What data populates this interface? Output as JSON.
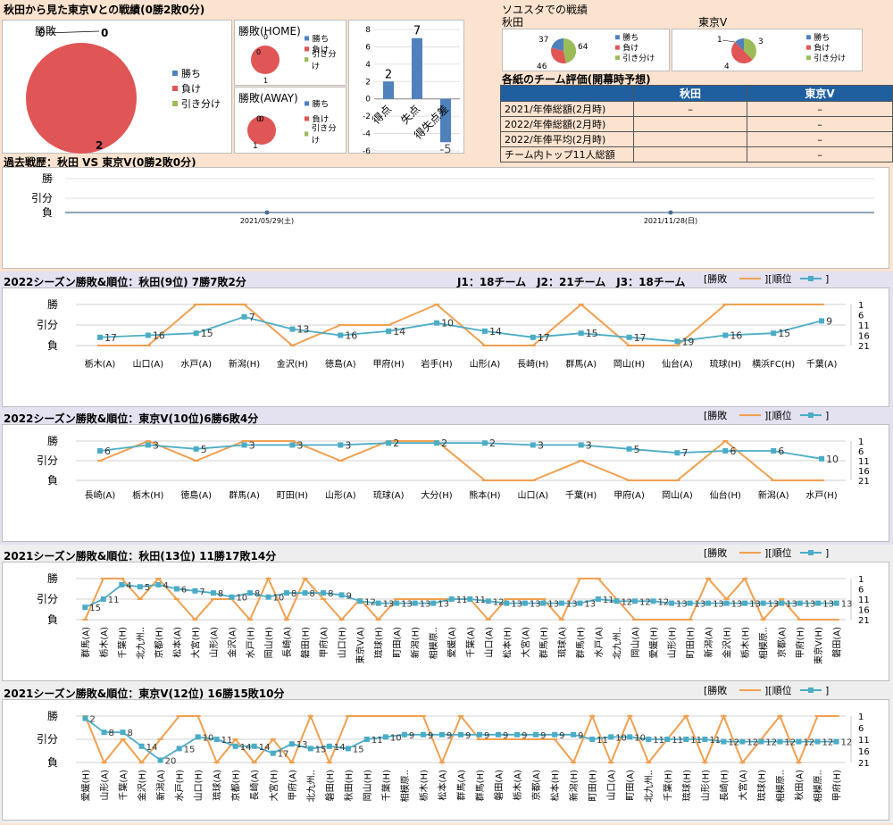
{
  "top": {
    "title": "秋田から見た東京Vとの戦績(0勝2敗0分)",
    "pie_label": "勝敗",
    "pie_home_label": "勝敗(HOME)",
    "pie_away_label": "勝敗(AWAY)",
    "legend": [
      "勝ち",
      "負け",
      "引き分け"
    ],
    "colors": {
      "win": "#4f81bd",
      "loss": "#e05555",
      "draw": "#9bbb59"
    }
  },
  "sosusta": {
    "title": "ソユスタでの戦績",
    "akita_label": "秋田",
    "tokyo_label": "東京V"
  },
  "eval": {
    "title": "各紙のチーム評価(開幕時予想)",
    "col_akita": "秋田",
    "col_tokyo": "東京V",
    "rows": [
      {
        "label": "2021/年俸総額(2月時)",
        "akita": "–",
        "tokyo": "–"
      },
      {
        "label": "2022/年俸総額(2月時)",
        "akita": "",
        "tokyo": "–"
      },
      {
        "label": "2022/年俸平均(2月時)",
        "akita": "",
        "tokyo": "–"
      },
      {
        "label": "チーム内トップ11人総額",
        "akita": "",
        "tokyo": "–"
      }
    ]
  },
  "history": {
    "title": "過去戦歴：秋田 VS 東京V(0勝2敗0分)",
    "ylabels": [
      "勝",
      "引分",
      "負"
    ]
  },
  "season_labels": {
    "s1": "2022シーズン勝敗&順位：秋田(9位) 7勝7敗2分",
    "s1_note": "J1：18チーム　J2：21チーム　J3：18チーム",
    "s2": "2022シーズン勝敗&順位：東京V(10位)6勝6敗4分",
    "s3": "2021シーズン勝敗&順位：秋田(13位) 11勝17敗14分",
    "s4": "2021シーズン勝敗&順位：東京V(12位) 16勝15敗10分",
    "legend_result": "[勝敗",
    "legend_rank": "][順位",
    "legend_end": "]",
    "ylabels": [
      "勝",
      "引分",
      "負"
    ]
  },
  "chart_data": [
    {
      "type": "pie",
      "title": "勝敗",
      "series": [
        {
          "name": "勝ち",
          "value": 0
        },
        {
          "name": "負け",
          "value": 2
        },
        {
          "name": "引き分け",
          "value": 0
        }
      ]
    },
    {
      "type": "pie",
      "title": "勝敗(HOME)",
      "series": [
        {
          "name": "勝ち",
          "value": 0
        },
        {
          "name": "負け",
          "value": 1
        },
        {
          "name": "引き分け",
          "value": 0
        }
      ]
    },
    {
      "type": "pie",
      "title": "勝敗(AWAY)",
      "series": [
        {
          "name": "勝ち",
          "value": 0
        },
        {
          "name": "負け",
          "value": 1
        },
        {
          "name": "引き分け",
          "value": 0
        }
      ]
    },
    {
      "type": "bar",
      "categories": [
        "得点",
        "失点",
        "得失点差"
      ],
      "values": [
        2,
        7,
        -5
      ],
      "ylim": [
        -6,
        8
      ],
      "yticks": [
        -6,
        -4,
        -2,
        0,
        2,
        4,
        6,
        8
      ]
    },
    {
      "type": "pie",
      "title": "秋田",
      "series": [
        {
          "name": "勝ち",
          "value": 37
        },
        {
          "name": "負け",
          "value": 46
        },
        {
          "name": "引き分け",
          "value": 64
        }
      ]
    },
    {
      "type": "pie",
      "title": "東京V",
      "series": [
        {
          "name": "勝ち",
          "value": 1
        },
        {
          "name": "負け",
          "value": 4
        },
        {
          "name": "引き分け",
          "value": 3
        }
      ]
    },
    {
      "type": "line",
      "title": "過去戦歴：秋田 VS 東京V(0勝2敗0分)",
      "x": [
        "2021/05/29(土)",
        "2021/11/28(日)"
      ],
      "result": [
        0,
        0
      ]
    },
    {
      "type": "line",
      "title": "2022シーズン勝敗&順位：秋田(9位) 7勝7敗2分",
      "x": [
        "栃木(A)",
        "山口(A)",
        "水戸(A)",
        "新潟(H)",
        "金沢(H)",
        "徳島(A)",
        "甲府(H)",
        "岩手(H)",
        "山形(A)",
        "長崎(H)",
        "群馬(A)",
        "岡山(H)",
        "仙台(A)",
        "琉球(H)",
        "横浜FC(H)",
        "千葉(A)"
      ],
      "result": [
        0,
        0,
        2,
        2,
        0,
        1,
        1,
        2,
        0,
        0,
        2,
        0,
        0,
        2,
        2,
        2
      ],
      "rank": [
        17,
        16,
        15,
        7,
        13,
        16,
        14,
        10,
        14,
        17,
        15,
        17,
        19,
        16,
        15,
        9
      ]
    },
    {
      "type": "line",
      "title": "2022シーズン勝敗&順位：東京V(10位)6勝6敗4分",
      "x": [
        "長崎(A)",
        "栃木(H)",
        "徳島(A)",
        "群馬(A)",
        "町田(H)",
        "山形(A)",
        "琉球(A)",
        "大分(H)",
        "熊本(H)",
        "山口(A)",
        "千葉(H)",
        "甲府(A)",
        "岡山(A)",
        "仙台(H)",
        "新潟(A)",
        "水戸(H)"
      ],
      "result": [
        1,
        2,
        1,
        2,
        2,
        1,
        2,
        2,
        0,
        0,
        1,
        0,
        0,
        2,
        0,
        0
      ],
      "rank": [
        6,
        3,
        5,
        3,
        3,
        3,
        2,
        2,
        2,
        3,
        3,
        5,
        7,
        6,
        6,
        10
      ]
    },
    {
      "type": "line",
      "title": "2021シーズン勝敗&順位：秋田(13位) 11勝17敗14分",
      "x": [
        "群馬(A)",
        "栃木(A)",
        "千葉(H)",
        "北九州..",
        "京都(H)",
        "松本(A)",
        "大宮(H)",
        "山形(A)",
        "金沢(A)",
        "水戸(H)",
        "岡山(H)",
        "長崎(A)",
        "磐田(H)",
        "甲府(A)",
        "山口(H)",
        "東京V(A)",
        "琉球(H)",
        "町田(A)",
        "新潟(H)",
        "相模原..",
        "愛媛(A)",
        "千葉(A)",
        "山口(A)",
        "松本(H)",
        "大宮(A)",
        "群馬(H)",
        "琉球(A)",
        "群馬(H)",
        "水戸(A)",
        "北九州..",
        "岡山(A)",
        "愛媛(H)",
        "山形(H)",
        "町田(H)",
        "新潟(A)",
        "金沢(H)",
        "栃木(H)",
        "相模原..",
        "京都(A)",
        "甲府(H)",
        "東京V(H)",
        "磐田(A)"
      ],
      "result": [
        0,
        2,
        2,
        1,
        2,
        1,
        0,
        1,
        1,
        0,
        2,
        0,
        2,
        1,
        0,
        1,
        0,
        1,
        1,
        1,
        1,
        1,
        0,
        1,
        1,
        1,
        0,
        2,
        2,
        1,
        0,
        0,
        0,
        0,
        2,
        1,
        2,
        0,
        1,
        0,
        0,
        0
      ],
      "rank": [
        15,
        11,
        4,
        5,
        4,
        6,
        7,
        8,
        10,
        8,
        10,
        8,
        8,
        8,
        9,
        12,
        13,
        13,
        13,
        13,
        11,
        11,
        12,
        13,
        13,
        13,
        13,
        13,
        11,
        12,
        12,
        12,
        13,
        13,
        13,
        13,
        13,
        13,
        13,
        13,
        13,
        13
      ]
    },
    {
      "type": "line",
      "title": "2021シーズン勝敗&順位：東京V(12位) 16勝15敗10分",
      "x": [
        "愛媛(H)",
        "山形(A)",
        "千葉(A)",
        "金沢(H)",
        "新潟(A)",
        "水戸(H)",
        "山口(H)",
        "琉球(A)",
        "京都(H)",
        "長崎(A)",
        "大宮(H)",
        "甲府(A)",
        "北九州..",
        "磐田(H)",
        "秋田(H)",
        "岡山(H)",
        "千葉(H)",
        "相模原..",
        "栃木(H)",
        "松本(A)",
        "群馬(A)",
        "群馬(H)",
        "磐田(A)",
        "栃木(A)",
        "京都(A)",
        "松本(H)",
        "新潟(H)",
        "町田(H)",
        "山口(A)",
        "町田(A)",
        "北九州..",
        "千葉(H)",
        "琉球(H)",
        "山形(H)",
        "長崎(H)",
        "大宮(A)",
        "琉球(H)",
        "相模原..",
        "秋田(A)",
        "相模原..",
        "甲府(H)"
      ],
      "result": [
        2,
        0,
        1,
        0,
        1,
        2,
        2,
        0,
        1,
        0,
        1,
        0,
        2,
        0,
        2,
        2,
        2,
        2,
        2,
        0,
        2,
        1,
        1,
        1,
        1,
        1,
        0,
        2,
        0,
        2,
        0,
        1,
        2,
        0,
        2,
        0,
        1,
        2,
        0,
        2,
        2
      ],
      "rank": [
        2,
        8,
        8,
        14,
        20,
        15,
        10,
        11,
        14,
        14,
        17,
        13,
        15,
        14,
        15,
        11,
        10,
        9,
        9,
        9,
        9,
        9,
        9,
        9,
        9,
        9,
        9,
        11,
        10,
        10,
        11,
        11,
        11,
        11,
        12,
        12,
        12,
        12,
        12,
        12,
        12
      ]
    }
  ]
}
